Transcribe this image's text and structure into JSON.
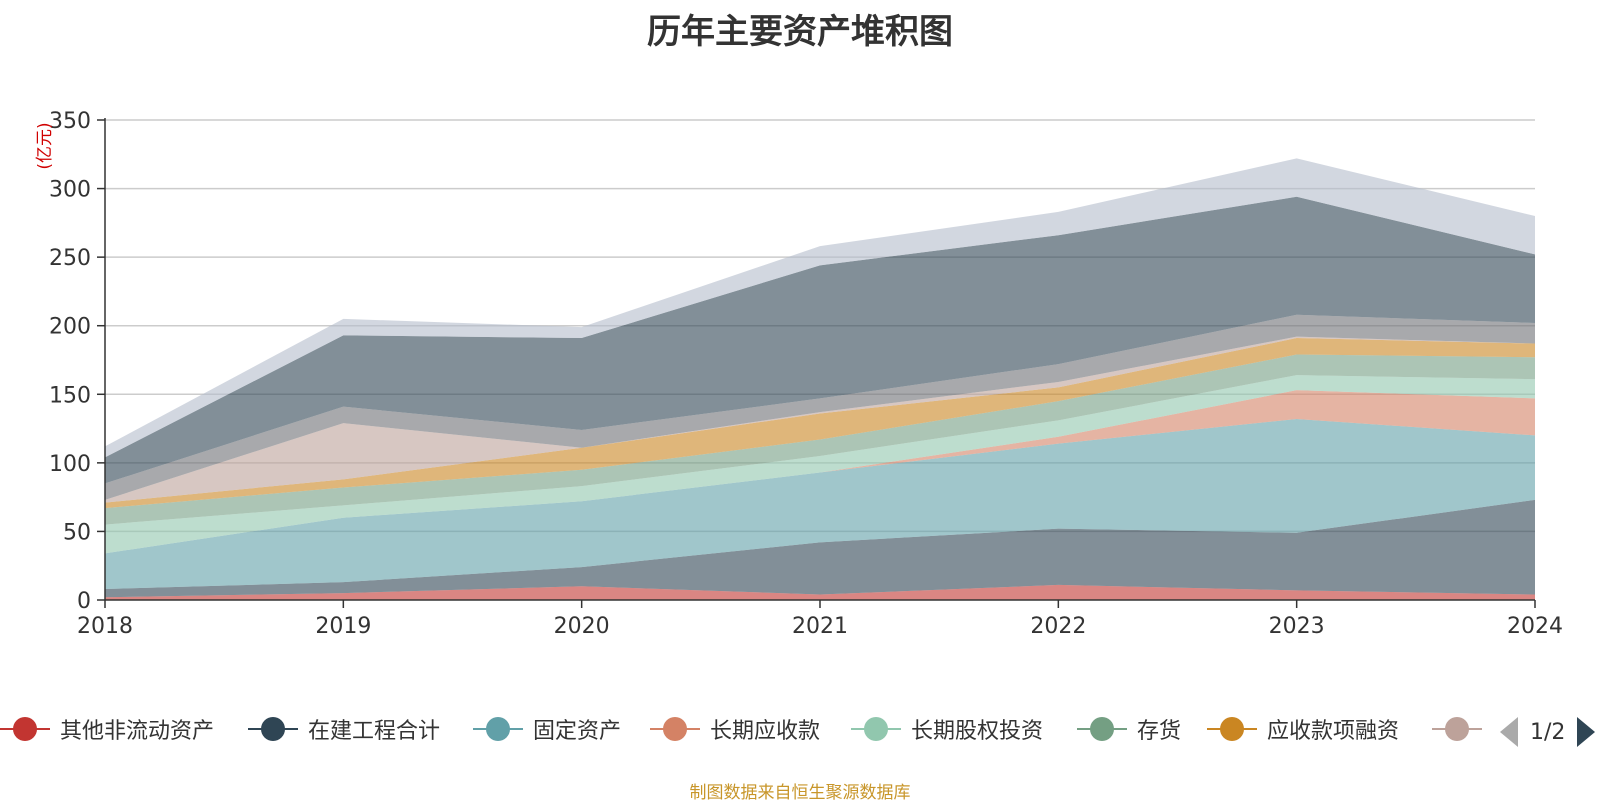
{
  "title": "历年主要资产堆积图",
  "source_note": "制图数据来自恒生聚源数据库",
  "pager": {
    "text": "1/2"
  },
  "chart_data": {
    "type": "area",
    "stacked": true,
    "title": "历年主要资产堆积图",
    "ylabel": "(亿元)",
    "xlabel": "",
    "x": [
      "2018",
      "2019",
      "2020",
      "2021",
      "2022",
      "2023",
      "2024"
    ],
    "ylim": [
      0,
      350
    ],
    "yticks": [
      0,
      50,
      100,
      150,
      200,
      250,
      300,
      350
    ],
    "grid": true,
    "legend_position": "bottom",
    "series": [
      {
        "name": "其他非流动资产",
        "color": "#c23531",
        "values": [
          2,
          5,
          10,
          4,
          11,
          7,
          4
        ]
      },
      {
        "name": "在建工程合计",
        "color": "#2f4554",
        "values": [
          6,
          8,
          14,
          38,
          41,
          42,
          69
        ]
      },
      {
        "name": "固定资产",
        "color": "#61a0a8",
        "values": [
          26,
          47,
          48,
          51,
          62,
          83,
          47
        ]
      },
      {
        "name": "长期应收款",
        "color": "#d48265",
        "values": [
          0,
          0,
          0,
          0,
          5,
          21,
          27
        ]
      },
      {
        "name": "长期股权投资",
        "color": "#91c7ae",
        "values": [
          21,
          9,
          11,
          12,
          12,
          11,
          14
        ]
      },
      {
        "name": "存货",
        "color": "#749f83",
        "values": [
          12,
          13,
          12,
          12,
          14,
          15,
          16
        ]
      },
      {
        "name": "应收款项融资",
        "color": "#ca8622",
        "values": [
          4,
          6,
          16,
          19,
          10,
          12,
          10
        ]
      },
      {
        "name": "",
        "color": "#bda29a",
        "values": [
          2,
          41,
          0,
          1,
          4,
          1,
          0
        ]
      },
      {
        "name": "",
        "color": "#6e7074",
        "values": [
          12,
          12,
          13,
          10,
          13,
          16,
          15
        ]
      },
      {
        "name": "",
        "color": "#2f4554",
        "values": [
          19,
          52,
          67,
          97,
          94,
          86,
          50
        ]
      },
      {
        "name": "",
        "color": "#b4bccc",
        "values": [
          8,
          12,
          8,
          14,
          17,
          28,
          28
        ]
      }
    ]
  },
  "legend": {
    "items": [
      {
        "label": "其他非流动资产",
        "color": "#c23531"
      },
      {
        "label": "在建工程合计",
        "color": "#2f4554"
      },
      {
        "label": "固定资产",
        "color": "#61a0a8"
      },
      {
        "label": "长期应收款",
        "color": "#d48265"
      },
      {
        "label": "长期股权投资",
        "color": "#91c7ae"
      },
      {
        "label": "存货",
        "color": "#749f83"
      },
      {
        "label": "应收款项融资",
        "color": "#ca8622"
      },
      {
        "label": "",
        "color": "#bda29a"
      }
    ]
  }
}
